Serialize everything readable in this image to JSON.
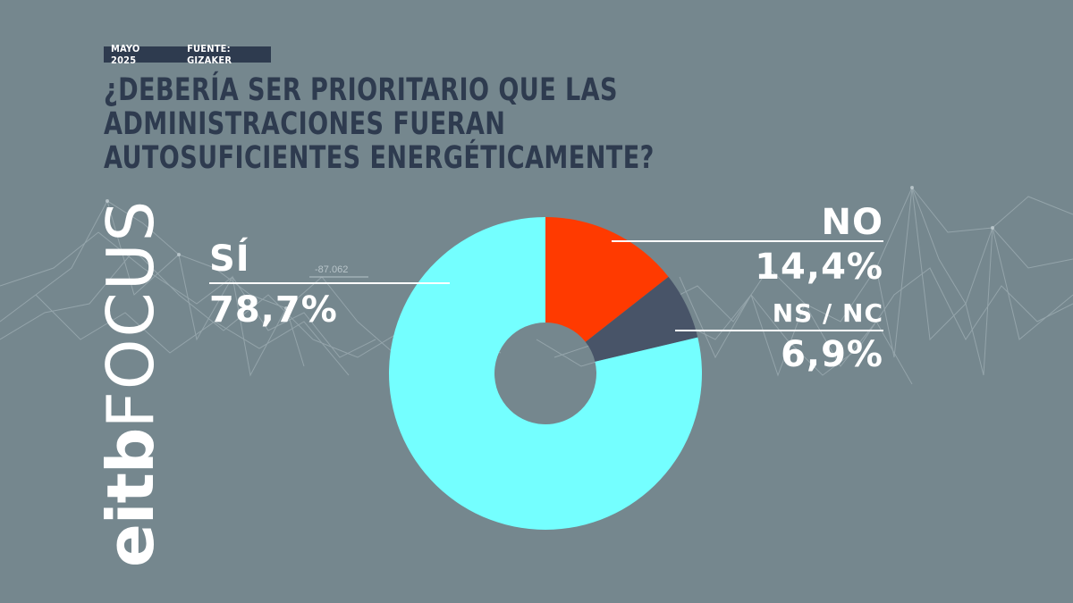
{
  "header": {
    "date": "MAYO 2025",
    "source": "FUENTE: GIZAKER"
  },
  "title": "¿DEBERÍA SER PRIORITARIO QUE LAS ADMINISTRACIONES FUERAN AUTOSUFICIENTES ENERGÉTICAMENTE?",
  "background_label": "-87.062",
  "logo": {
    "part1": "eitb",
    "part2": "FOCUS"
  },
  "colors": {
    "background": "#75878e",
    "title": "#2e3b4f",
    "si": "#74ffff",
    "no": "#ff3a00",
    "nsnc": "#485468",
    "leader": "#ffffff"
  },
  "chart_data": {
    "type": "pie",
    "donut": true,
    "title": "¿DEBERÍA SER PRIORITARIO QUE LAS ADMINISTRACIONES FUERAN AUTOSUFICIENTES ENERGÉTICAMENTE?",
    "slices": [
      {
        "label": "SÍ",
        "value": 78.7,
        "display": "78,7%",
        "color": "#74ffff"
      },
      {
        "label": "NO",
        "value": 14.4,
        "display": "14,4%",
        "color": "#ff3a00"
      },
      {
        "label": "NS / NC",
        "value": 6.9,
        "display": "6,9%",
        "color": "#485468"
      }
    ]
  }
}
